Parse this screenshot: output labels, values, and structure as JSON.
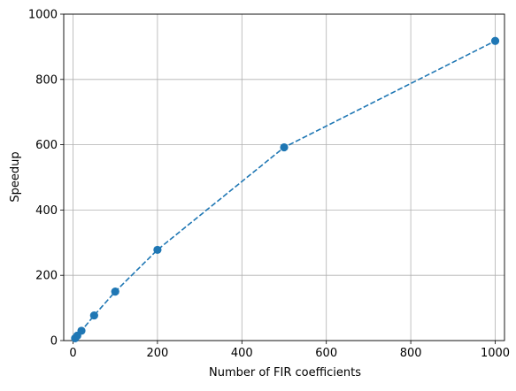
{
  "chart_data": {
    "type": "line",
    "title": "",
    "xlabel": "Number of FIR coefficients",
    "ylabel": "Speedup",
    "xlim": [
      -22,
      1022
    ],
    "ylim": [
      0,
      1000
    ],
    "xticks": [
      0,
      200,
      400,
      600,
      800,
      1000
    ],
    "yticks": [
      0,
      200,
      400,
      600,
      800,
      1000
    ],
    "grid": true,
    "legend": "none",
    "series": [
      {
        "line_style": "dashed",
        "marker": "circle",
        "color": "#1f77b4",
        "x": [
          5,
          10,
          20,
          50,
          100,
          200,
          500,
          1000
        ],
        "y": [
          7,
          15,
          30,
          77,
          150,
          278,
          592,
          918
        ]
      }
    ]
  }
}
